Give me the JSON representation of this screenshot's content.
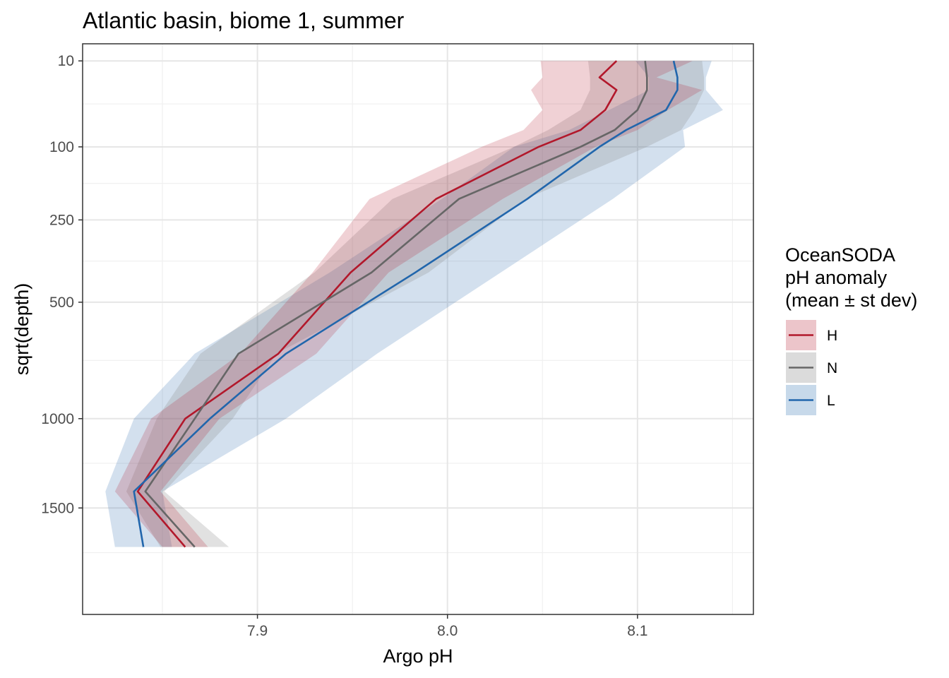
{
  "chart_data": {
    "type": "line",
    "title": "Atlantic basin, biome 1, summer",
    "xlabel": "Argo pH",
    "ylabel": "sqrt(depth)",
    "xlim": [
      7.808,
      8.161
    ],
    "ylim": [
      1.8,
      47.2
    ],
    "y_scale": "sqrt",
    "y_reversed": true,
    "grid": true,
    "x_ticks": [
      7.9,
      8.0,
      8.1
    ],
    "x_tick_labels": [
      "7.9",
      "8.0",
      "8.1"
    ],
    "y_ticks": [
      10,
      100,
      250,
      500,
      1000,
      1500
    ],
    "y_tick_labels": [
      "10",
      "100",
      "250",
      "500",
      "1000",
      "1500"
    ],
    "legend": {
      "title": "OceanSODA\npH anomaly\n(mean ± st dev)",
      "position": "right"
    },
    "series": [
      {
        "name": "H",
        "color": "#b2182b",
        "depth": [
          10,
          20,
          30,
          50,
          75,
          100,
          200,
          400,
          700,
          1000,
          1400,
          1750
        ],
        "mean": [
          8.089,
          8.08,
          8.089,
          8.083,
          8.07,
          8.048,
          7.994,
          7.949,
          7.911,
          7.862,
          7.837,
          7.862
        ],
        "sd": [
          0.04,
          0.03,
          0.045,
          0.033,
          0.03,
          0.03,
          0.035,
          0.02,
          0.02,
          0.018,
          0.012,
          0.012
        ]
      },
      {
        "name": "N",
        "color": "#666666",
        "depth": [
          10,
          20,
          30,
          50,
          75,
          100,
          200,
          400,
          700,
          1000,
          1400,
          1750
        ],
        "mean": [
          8.104,
          8.105,
          8.105,
          8.1,
          8.088,
          8.07,
          8.006,
          7.96,
          7.89,
          7.867,
          7.841,
          7.867
        ],
        "sd": [
          0.03,
          0.03,
          0.03,
          0.03,
          0.035,
          0.035,
          0.035,
          0.03,
          0.02,
          0.02,
          0.01,
          0.018
        ]
      },
      {
        "name": "L",
        "color": "#2166ac",
        "depth": [
          10,
          20,
          30,
          50,
          75,
          100,
          200,
          400,
          700,
          1000,
          1400,
          1750
        ],
        "mean": [
          8.119,
          8.121,
          8.121,
          8.115,
          8.094,
          8.08,
          8.042,
          7.983,
          7.915,
          7.875,
          7.835,
          7.84
        ],
        "sd": [
          0.02,
          0.015,
          0.015,
          0.03,
          0.03,
          0.045,
          0.045,
          0.045,
          0.048,
          0.04,
          0.015,
          0.015
        ]
      }
    ]
  }
}
